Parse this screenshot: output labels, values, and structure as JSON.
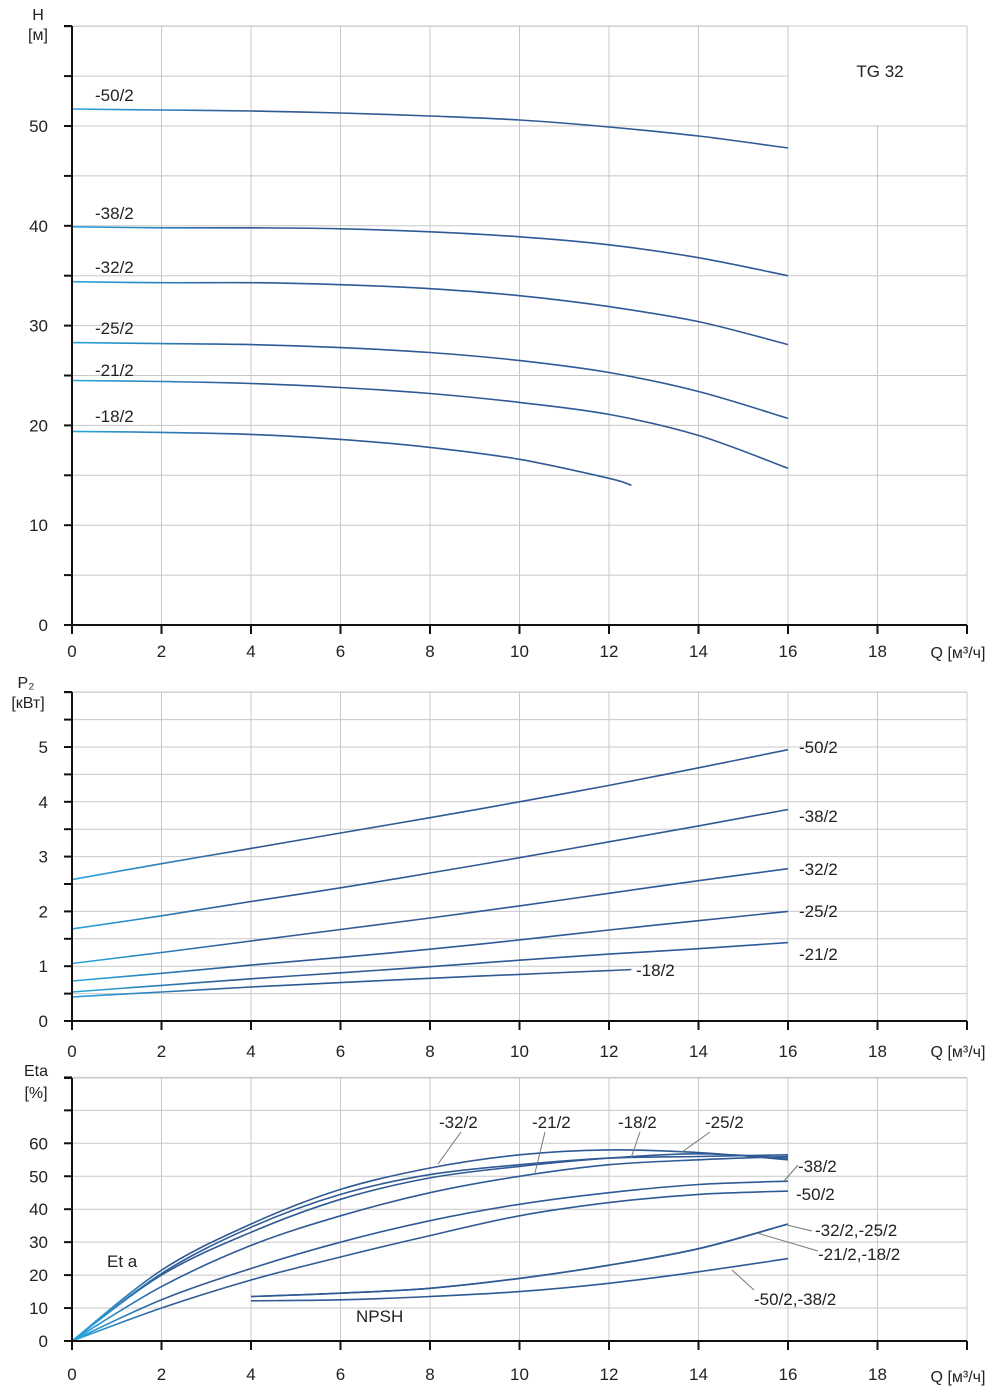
{
  "chart_data": [
    {
      "type": "line",
      "id": "head",
      "title": "TG 32",
      "ylabel": "H",
      "yunit": "[м]",
      "xlabel": "Q [м³/ч]",
      "xlim": [
        0,
        20
      ],
      "ylim": [
        0,
        60
      ],
      "xticks": [
        "0",
        "2",
        "4",
        "6",
        "8",
        "10",
        "12",
        "14",
        "16",
        "18"
      ],
      "yticks": [
        "0",
        "10",
        "20",
        "30",
        "40",
        "50"
      ],
      "grid": true,
      "series": [
        {
          "name": "-50/2",
          "x": [
            0,
            2,
            4,
            6,
            8,
            10,
            12,
            14,
            16
          ],
          "y": [
            51.7,
            51.6,
            51.5,
            51.3,
            51.0,
            50.6,
            49.9,
            49.0,
            47.8
          ]
        },
        {
          "name": "-38/2",
          "x": [
            0,
            2,
            4,
            6,
            8,
            10,
            12,
            14,
            16
          ],
          "y": [
            39.9,
            39.8,
            39.8,
            39.7,
            39.4,
            38.9,
            38.1,
            36.8,
            35.0
          ]
        },
        {
          "name": "-32/2",
          "x": [
            0,
            2,
            4,
            6,
            8,
            10,
            12,
            14,
            16
          ],
          "y": [
            34.4,
            34.3,
            34.3,
            34.1,
            33.7,
            33.0,
            31.9,
            30.4,
            28.1
          ]
        },
        {
          "name": "-25/2",
          "x": [
            0,
            2,
            4,
            6,
            8,
            10,
            12,
            14,
            16
          ],
          "y": [
            28.3,
            28.2,
            28.1,
            27.8,
            27.3,
            26.5,
            25.3,
            23.4,
            20.7
          ]
        },
        {
          "name": "-21/2",
          "x": [
            0,
            2,
            4,
            6,
            8,
            10,
            12,
            14,
            16
          ],
          "y": [
            24.5,
            24.4,
            24.2,
            23.8,
            23.2,
            22.3,
            21.1,
            19.0,
            15.7
          ]
        },
        {
          "name": "-18/2",
          "x": [
            0,
            2,
            4,
            6,
            8,
            10,
            12,
            12.5
          ],
          "y": [
            19.4,
            19.3,
            19.1,
            18.6,
            17.8,
            16.6,
            14.7,
            14.0
          ]
        }
      ]
    },
    {
      "type": "line",
      "id": "power",
      "ylabel": "P₂",
      "yunit": "[кВт]",
      "xlabel": "Q [м³/ч]",
      "xlim": [
        0,
        20
      ],
      "ylim": [
        0,
        6
      ],
      "xticks": [
        "0",
        "2",
        "4",
        "6",
        "8",
        "10",
        "12",
        "14",
        "16",
        "18"
      ],
      "yticks": [
        "0",
        "1",
        "2",
        "3",
        "4",
        "5"
      ],
      "grid": true,
      "series": [
        {
          "name": "-50/2",
          "x": [
            0,
            2,
            4,
            6,
            8,
            10,
            12,
            14,
            16
          ],
          "y": [
            2.58,
            2.87,
            3.15,
            3.43,
            3.71,
            4.0,
            4.3,
            4.62,
            4.95
          ]
        },
        {
          "name": "-38/2",
          "x": [
            0,
            2,
            4,
            6,
            8,
            10,
            12,
            14,
            16
          ],
          "y": [
            1.68,
            1.92,
            2.18,
            2.43,
            2.7,
            2.98,
            3.27,
            3.56,
            3.86
          ]
        },
        {
          "name": "-32/2",
          "x": [
            0,
            2,
            4,
            6,
            8,
            10,
            12,
            14,
            16
          ],
          "y": [
            1.05,
            1.25,
            1.46,
            1.67,
            1.88,
            2.1,
            2.33,
            2.56,
            2.78
          ]
        },
        {
          "name": "-25/2",
          "x": [
            0,
            2,
            4,
            6,
            8,
            10,
            12,
            14,
            16
          ],
          "y": [
            0.73,
            0.87,
            1.02,
            1.16,
            1.31,
            1.48,
            1.66,
            1.83,
            2.0
          ]
        },
        {
          "name": "-21/2",
          "x": [
            0,
            2,
            4,
            6,
            8,
            10,
            12,
            14,
            16
          ],
          "y": [
            0.53,
            0.65,
            0.77,
            0.88,
            0.99,
            1.11,
            1.22,
            1.32,
            1.43
          ]
        },
        {
          "name": "-18/2",
          "x": [
            0,
            2,
            4,
            6,
            8,
            10,
            12,
            12.5
          ],
          "y": [
            0.44,
            0.53,
            0.62,
            0.7,
            0.78,
            0.85,
            0.92,
            0.94
          ]
        }
      ]
    },
    {
      "type": "line",
      "id": "efficiency",
      "ylabel": "Eta",
      "yunit": "[%]",
      "xlabel": "Q [м³/ч]",
      "xlim": [
        0,
        20
      ],
      "ylim": [
        0,
        80
      ],
      "xticks": [
        "0",
        "2",
        "4",
        "6",
        "8",
        "10",
        "12",
        "14",
        "16",
        "18"
      ],
      "yticks": [
        "0",
        "10",
        "20",
        "30",
        "40",
        "50",
        "60"
      ],
      "grid": true,
      "annotations": [
        "Et a",
        "NPSH"
      ],
      "series": [
        {
          "name": "-32/2",
          "x": [
            0,
            2,
            4,
            6,
            8,
            10,
            12,
            14,
            16
          ],
          "y": [
            0,
            21.5,
            35.5,
            46,
            52.5,
            56.5,
            58,
            57.2,
            55
          ]
        },
        {
          "name": "-21/2",
          "x": [
            0,
            2,
            4,
            6,
            8,
            10,
            12,
            14,
            16
          ],
          "y": [
            0,
            20.5,
            34.5,
            44.5,
            50.5,
            53.5,
            55.5,
            56,
            56.5
          ]
        },
        {
          "name": "-18/2",
          "x": [
            0,
            2,
            4,
            6,
            8,
            10,
            12,
            14,
            16
          ],
          "y": [
            0,
            20,
            33,
            43,
            49.5,
            53,
            55.5,
            56.8,
            55.5
          ]
        },
        {
          "name": "-25/2",
          "x": [
            0,
            2,
            4,
            6,
            8,
            10,
            12,
            14,
            16
          ],
          "y": [
            0,
            16.5,
            29,
            38,
            45,
            50,
            53.5,
            55,
            56
          ]
        },
        {
          "name": "-38/2",
          "x": [
            0,
            2,
            4,
            6,
            8,
            10,
            12,
            14,
            16
          ],
          "y": [
            0,
            12.5,
            22,
            30,
            36.5,
            41.5,
            45,
            47.5,
            48.5
          ]
        },
        {
          "name": "-50/2",
          "x": [
            0,
            2,
            4,
            6,
            8,
            10,
            12,
            14,
            16
          ],
          "y": [
            0,
            10,
            18.5,
            25.5,
            32,
            38,
            42,
            44.5,
            45.5
          ]
        }
      ],
      "npsh_series": [
        {
          "name": "-32/2,-25/2",
          "x": [
            4,
            6,
            8,
            10,
            12,
            14,
            16
          ],
          "y": [
            13.5,
            14.5,
            16,
            19,
            23,
            28,
            35.5
          ]
        },
        {
          "name": "-21/2,-18/2",
          "x": [
            4,
            6,
            8,
            10,
            12,
            14,
            16
          ],
          "y": [
            13.5,
            14.5,
            16,
            19,
            23,
            28,
            35.5
          ]
        },
        {
          "name": "-50/2,-38/2",
          "x": [
            4,
            6,
            8,
            10,
            12,
            14,
            16
          ],
          "y": [
            12.2,
            12.5,
            13.5,
            15,
            17.5,
            21,
            25
          ]
        }
      ]
    }
  ],
  "colors": {
    "curve_dark": "#2f5a95",
    "curve_light": "#29a8e0",
    "grid": "#c8c8c8",
    "axis": "#111111",
    "text": "#222222"
  }
}
